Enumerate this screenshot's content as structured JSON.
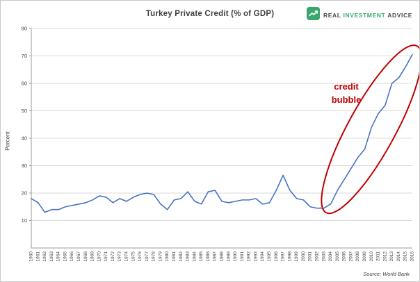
{
  "header": {
    "title": "Turkey Private Credit (% of GDP)",
    "logo": {
      "real": "REAL",
      "investment": "INVESTMENT",
      "advice": "ADVICE",
      "brand_green": "#3aa76d"
    }
  },
  "annotation": {
    "line1": "credit",
    "line2": "bubble",
    "color": "#c00000"
  },
  "footer": {
    "source": "Source: World Bank"
  },
  "chart_data": {
    "type": "line",
    "title": "Turkey Private Credit (% of GDP)",
    "xlabel": "",
    "ylabel": "Percent",
    "ylim": [
      0,
      80
    ],
    "yticks": [
      10,
      20,
      30,
      40,
      50,
      60,
      70,
      80
    ],
    "grid": true,
    "legend": "none",
    "line_color": "#4472c4",
    "x": [
      1960,
      1961,
      1962,
      1963,
      1964,
      1965,
      1966,
      1967,
      1968,
      1969,
      1970,
      1971,
      1972,
      1973,
      1974,
      1975,
      1976,
      1977,
      1978,
      1979,
      1980,
      1981,
      1982,
      1983,
      1984,
      1985,
      1986,
      1987,
      1988,
      1989,
      1990,
      1991,
      1992,
      1993,
      1994,
      1995,
      1996,
      1997,
      1998,
      1999,
      2000,
      2001,
      2002,
      2003,
      2004,
      2005,
      2006,
      2007,
      2008,
      2009,
      2010,
      2011,
      2012,
      2013,
      2014,
      2015,
      2016
    ],
    "values": [
      18,
      16.5,
      13,
      14,
      14,
      15,
      15.5,
      16,
      16.5,
      17.5,
      19,
      18.5,
      16.5,
      18,
      17,
      18.5,
      19.5,
      20,
      19.5,
      16,
      14,
      17.5,
      18,
      20.5,
      17,
      16,
      20.5,
      21,
      17,
      16.5,
      17,
      17.5,
      17.5,
      18,
      16,
      16.5,
      21,
      26.5,
      21,
      18,
      17.5,
      15,
      14.5,
      14.5,
      16,
      21,
      25,
      29,
      33,
      36,
      44,
      49,
      52,
      60,
      62,
      66,
      70.5
    ],
    "annotation_span": {
      "start_year": 2004,
      "end_year": 2016
    }
  }
}
